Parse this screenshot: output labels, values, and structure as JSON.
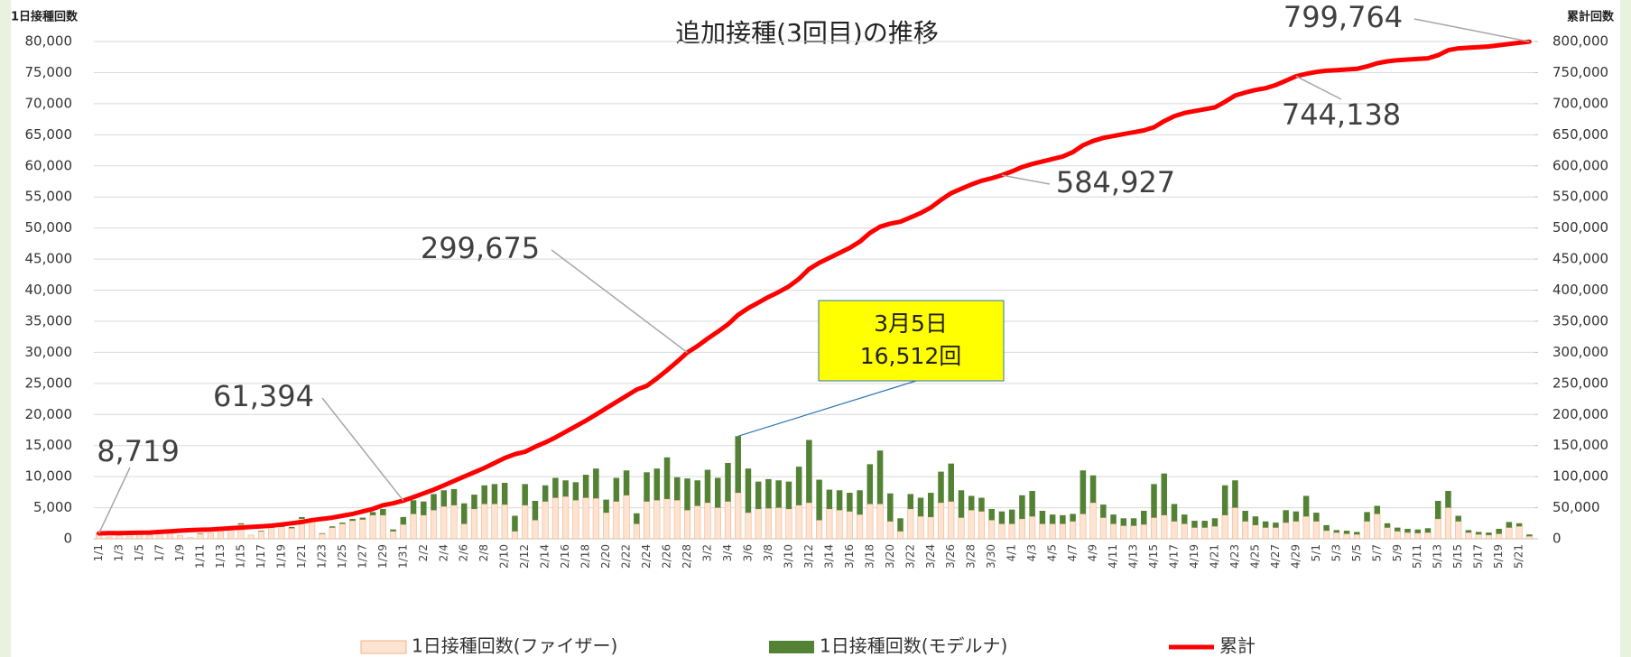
{
  "chart_data": {
    "type": "bar-line",
    "title": "追加接種(3回目)の推移",
    "y_axis_title": "1日接種回数",
    "y2_axis_title": "累計回数",
    "annotation": {
      "lines": [
        "3月5日",
        "16,512回"
      ]
    },
    "categories": [
      "1/1",
      null,
      "1/3",
      null,
      "1/5",
      null,
      "1/7",
      null,
      "1/9",
      null,
      "1/11",
      null,
      "1/13",
      null,
      "1/15",
      null,
      "1/17",
      null,
      "1/19",
      null,
      "1/21",
      null,
      "1/23",
      null,
      "1/25",
      null,
      "1/27",
      null,
      "1/29",
      null,
      "1/31",
      null,
      "2/2",
      null,
      "2/4",
      null,
      "2/6",
      null,
      "2/8",
      null,
      "2/10",
      null,
      "2/12",
      null,
      "2/14",
      null,
      "2/16",
      null,
      "2/18",
      null,
      "2/20",
      null,
      "2/22",
      null,
      "2/24",
      null,
      "2/26",
      null,
      "2/28",
      null,
      "3/2",
      null,
      "3/4",
      null,
      "3/6",
      null,
      "3/8",
      null,
      "3/10",
      null,
      "3/12",
      null,
      "3/14",
      null,
      "3/16",
      null,
      "3/18",
      null,
      "3/20",
      null,
      "3/22",
      null,
      "3/24",
      null,
      "3/26",
      null,
      "3/28",
      null,
      "3/30",
      null,
      "4/1",
      null,
      "4/3",
      null,
      "4/5",
      null,
      "4/7",
      null,
      "4/9",
      null,
      "4/11",
      null,
      "4/13",
      null,
      "4/15",
      null,
      "4/17",
      null,
      "4/19",
      null,
      "4/21",
      null,
      "4/23",
      null,
      "4/25",
      null,
      "4/27",
      null,
      "4/29",
      null,
      "5/1",
      null,
      "5/3",
      null,
      "5/5",
      null,
      "5/7",
      null,
      "5/9",
      null,
      "5/11",
      null,
      "5/13",
      null,
      "5/15",
      null,
      "5/17",
      null,
      "5/19",
      null,
      "5/21",
      null
    ],
    "series": [
      {
        "name": "1日接種回数(ファイザー)",
        "color": "#fde4d2",
        "stroke": "#f4b183",
        "values": [
          800,
          300,
          500,
          700,
          900,
          600,
          1200,
          1300,
          500,
          200,
          800,
          900,
          1300,
          1500,
          2300,
          600,
          1200,
          1800,
          1900,
          1700,
          3200,
          2800,
          800,
          1800,
          2400,
          2900,
          3100,
          3800,
          3800,
          1200,
          2300,
          4000,
          3800,
          4600,
          5200,
          5400,
          2400,
          4800,
          5600,
          5600,
          5500,
          1200,
          5400,
          3000,
          6000,
          6600,
          6800,
          6200,
          6600,
          6500,
          4200,
          6000,
          7000,
          2400,
          6000,
          6200,
          6400,
          6200,
          4600,
          5300,
          5800,
          5000,
          6000,
          7400,
          4200,
          4800,
          4900,
          5000,
          4800,
          5400,
          5800,
          3000,
          4800,
          4600,
          4400,
          3900,
          5600,
          5600,
          2800,
          1200,
          4800,
          3600,
          3500,
          5800,
          6000,
          3400,
          4600,
          4400,
          3000,
          2400,
          2400,
          3200,
          3600,
          2400,
          2400,
          2400,
          2800,
          4000,
          5800,
          3400,
          2400,
          2100,
          2100,
          2300,
          3400,
          3800,
          2800,
          2400,
          1800,
          1800,
          2000,
          3800,
          5000,
          2800,
          2200,
          1800,
          1800,
          2600,
          2800,
          3600,
          2800,
          1300,
          1000,
          800,
          700,
          2800,
          4000,
          1800,
          1200,
          1000,
          900,
          1000,
          3200,
          5000,
          2800,
          1000,
          700,
          600,
          800,
          1800,
          2000,
          400
        ]
      },
      {
        "name": "1日接種回数(モデルナ)",
        "color": "#548235",
        "values": [
          100,
          0,
          0,
          0,
          100,
          0,
          100,
          100,
          0,
          0,
          100,
          0,
          100,
          100,
          200,
          0,
          100,
          200,
          200,
          200,
          300,
          300,
          100,
          200,
          200,
          300,
          300,
          500,
          1000,
          300,
          1200,
          2200,
          2200,
          2600,
          2600,
          2600,
          3300,
          2300,
          3000,
          3200,
          3500,
          2500,
          3400,
          3100,
          2600,
          3200,
          2600,
          2900,
          3700,
          4800,
          2100,
          3800,
          4000,
          1700,
          4700,
          5100,
          6700,
          3700,
          5100,
          4100,
          5300,
          4800,
          6200,
          9112,
          7100,
          4400,
          4700,
          4400,
          4400,
          6200,
          10100,
          6500,
          3100,
          3200,
          3000,
          3900,
          6400,
          8600,
          4500,
          2100,
          2400,
          3000,
          3900,
          5000,
          6100,
          4400,
          2300,
          2200,
          1800,
          2000,
          2300,
          3800,
          4100,
          2100,
          1500,
          1400,
          1200,
          7000,
          4400,
          2100,
          1500,
          1200,
          1200,
          2200,
          5400,
          6700,
          2800,
          1500,
          1100,
          1100,
          1300,
          4800,
          4400,
          1700,
          1400,
          1000,
          800,
          2000,
          1600,
          3300,
          1400,
          900,
          400,
          500,
          400,
          1500,
          1300,
          700,
          600,
          600,
          600,
          700,
          2900,
          2700,
          900,
          400,
          400,
          400,
          800,
          900,
          500,
          300
        ]
      },
      {
        "name": "累計",
        "color": "#ff0000",
        "axis": "y2",
        "values": [
          8719,
          9000,
          9200,
          9400,
          9800,
          10000,
          11000,
          12000,
          13000,
          14000,
          14500,
          15000,
          16000,
          17000,
          18000,
          19000,
          20000,
          21000,
          23000,
          25000,
          27000,
          30000,
          32000,
          34000,
          37000,
          40000,
          44000,
          48000,
          54000,
          57000,
          61394,
          67000,
          73000,
          79000,
          86000,
          93000,
          100000,
          107000,
          114000,
          122000,
          130000,
          136000,
          140000,
          148000,
          155000,
          163000,
          172000,
          181000,
          190000,
          200000,
          210000,
          220000,
          230000,
          240000,
          246000,
          258000,
          271000,
          285000,
          299675,
          310000,
          322000,
          333000,
          345000,
          360000,
          371000,
          380000,
          389000,
          397000,
          406000,
          418000,
          434000,
          444000,
          452000,
          460000,
          468000,
          478000,
          492000,
          502000,
          507000,
          510000,
          517000,
          524000,
          533000,
          545000,
          556000,
          563000,
          570000,
          576000,
          580000,
          584927,
          591000,
          598000,
          603000,
          607000,
          611000,
          615000,
          622000,
          633000,
          640000,
          645000,
          648000,
          651000,
          654000,
          657000,
          662000,
          672000,
          680000,
          685000,
          688000,
          691000,
          694000,
          703000,
          713000,
          718000,
          722000,
          725000,
          730000,
          737000,
          744138,
          748000,
          751000,
          753000,
          754000,
          755000,
          756000,
          760000,
          765000,
          768000,
          770000,
          771000,
          772000,
          773000,
          778000,
          786000,
          789000,
          790000,
          791000,
          792000,
          794000,
          796000,
          798000,
          799764
        ],
        "value_labels": [
          "8,719",
          null,
          null,
          null,
          null,
          null,
          null,
          null,
          null,
          null,
          null,
          null,
          null,
          null,
          null,
          null,
          null,
          null,
          null,
          null,
          null,
          null,
          null,
          null,
          null,
          null,
          null,
          null,
          null,
          null,
          "61,394",
          null,
          null,
          null,
          null,
          null,
          null,
          null,
          null,
          null,
          null,
          null,
          null,
          null,
          null,
          null,
          null,
          null,
          null,
          null,
          null,
          null,
          null,
          null,
          null,
          null,
          null,
          null,
          "299,675",
          null,
          null,
          null,
          null,
          null,
          null,
          null,
          null,
          null,
          null,
          null,
          null,
          null,
          null,
          null,
          null,
          null,
          null,
          null,
          null,
          null,
          null,
          null,
          null,
          null,
          null,
          null,
          null,
          null,
          null,
          "584,927",
          null,
          null,
          null,
          null,
          null,
          null,
          null,
          null,
          null,
          null,
          null,
          null,
          null,
          null,
          null,
          null,
          null,
          null,
          null,
          null,
          null,
          null,
          null,
          null,
          null,
          null,
          null,
          null,
          "744,138",
          null,
          null,
          null,
          null,
          null,
          null,
          null,
          null,
          null,
          null,
          null,
          null,
          null,
          null,
          null,
          null,
          null,
          null,
          null,
          null,
          null,
          null,
          "799,764"
        ]
      }
    ],
    "ylim": [
      0,
      80000
    ],
    "yticks": [
      {
        "value": 0,
        "label": "0"
      },
      {
        "value": 5000,
        "label": "5,000"
      },
      {
        "value": 10000,
        "label": "10,000"
      },
      {
        "value": 15000,
        "label": "15,000"
      },
      {
        "value": 20000,
        "label": "20,000"
      },
      {
        "value": 25000,
        "label": "25,000"
      },
      {
        "value": 30000,
        "label": "30,000"
      },
      {
        "value": 35000,
        "label": "35,000"
      },
      {
        "value": 40000,
        "label": "40,000"
      },
      {
        "value": 45000,
        "label": "45,000"
      },
      {
        "value": 50000,
        "label": "50,000"
      },
      {
        "value": 55000,
        "label": "55,000"
      },
      {
        "value": 60000,
        "label": "60,000"
      },
      {
        "value": 65000,
        "label": "65,000"
      },
      {
        "value": 70000,
        "label": "70,000"
      },
      {
        "value": 75000,
        "label": "75,000"
      },
      {
        "value": 80000,
        "label": "80,000"
      }
    ],
    "y2lim": [
      0,
      800000
    ],
    "y2ticks": [
      {
        "value": 0,
        "label": "0"
      },
      {
        "value": 50000,
        "label": "50,000"
      },
      {
        "value": 100000,
        "label": "100,000"
      },
      {
        "value": 150000,
        "label": "150,000"
      },
      {
        "value": 200000,
        "label": "200,000"
      },
      {
        "value": 250000,
        "label": "250,000"
      },
      {
        "value": 300000,
        "label": "300,000"
      },
      {
        "value": 350000,
        "label": "350,000"
      },
      {
        "value": 400000,
        "label": "400,000"
      },
      {
        "value": 450000,
        "label": "450,000"
      },
      {
        "value": 500000,
        "label": "500,000"
      },
      {
        "value": 550000,
        "label": "550,000"
      },
      {
        "value": 600000,
        "label": "600,000"
      },
      {
        "value": 650000,
        "label": "650,000"
      },
      {
        "value": 700000,
        "label": "700,000"
      },
      {
        "value": 750000,
        "label": "750,000"
      },
      {
        "value": 800000,
        "label": "800,000"
      }
    ],
    "grid": true
  }
}
